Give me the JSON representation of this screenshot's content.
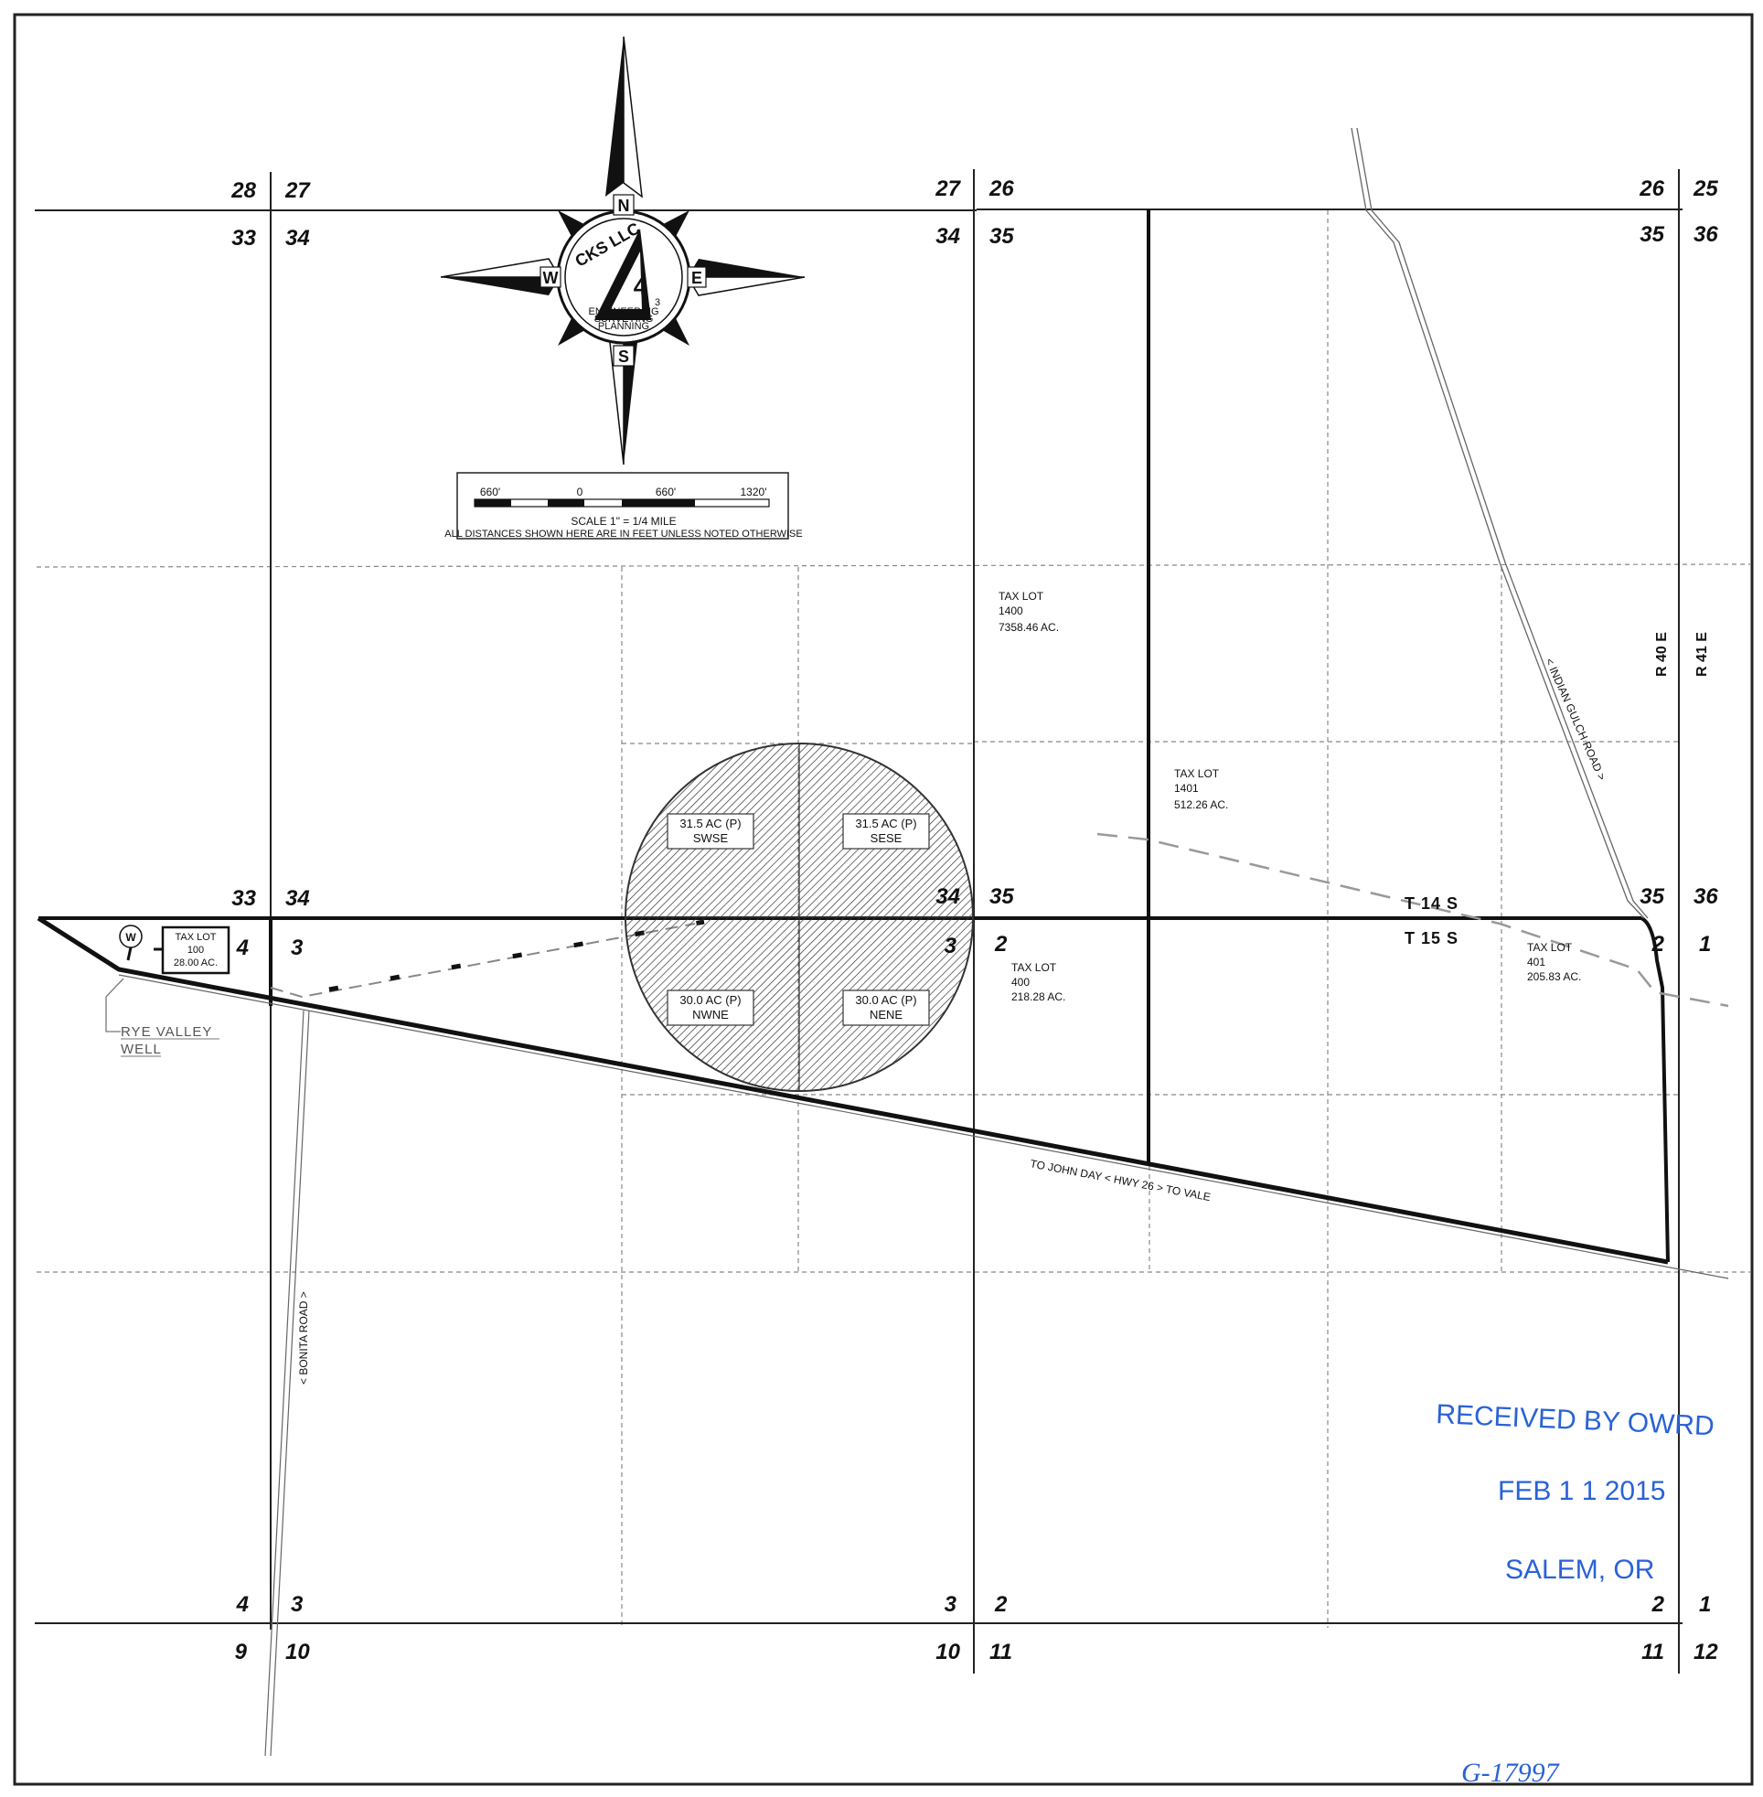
{
  "sections": {
    "row1": [
      "28",
      "27",
      "27",
      "26",
      "26",
      "25"
    ],
    "row2": [
      "33",
      "34",
      "34",
      "35",
      "35",
      "36"
    ],
    "row3": [
      "33",
      "34",
      "34",
      "35",
      "35",
      "36"
    ],
    "row4": [
      "4",
      "3",
      "3",
      "2",
      "2",
      "1"
    ],
    "row5": [
      "4",
      "3",
      "3",
      "2",
      "2",
      "1"
    ],
    "row6": [
      "9",
      "10",
      "10",
      "11",
      "11",
      "12"
    ]
  },
  "compass": {
    "n": "N",
    "s": "S",
    "e": "E",
    "w": "W",
    "ring_text": "CKS LLC",
    "logo": "4",
    "logo_sub": "3",
    "ring_lines": [
      "ENGINEERING",
      "SURVEYING",
      "PLANNING"
    ]
  },
  "scale_bar": {
    "labels": [
      "660'",
      "0",
      "660'",
      "1320'"
    ],
    "scale": "SCALE 1\" = 1/4 MILE",
    "note": "ALL DISTANCES SHOWN HERE ARE IN FEET UNLESS NOTED OTHERWISE"
  },
  "tax_lots": [
    {
      "name": "tax-lot-1400",
      "lines": [
        "TAX LOT",
        "1400",
        "7358.46 AC."
      ]
    },
    {
      "name": "tax-lot-1401",
      "lines": [
        "TAX LOT",
        "1401",
        "512.26 AC."
      ]
    },
    {
      "name": "tax-lot-400",
      "lines": [
        "TAX LOT",
        "400",
        "218.28 AC."
      ]
    },
    {
      "name": "tax-lot-401",
      "lines": [
        "TAX LOT",
        "401",
        "205.83 AC."
      ]
    }
  ],
  "tax_lot_100": [
    "TAX LOT",
    "100",
    "28.00 AC."
  ],
  "pivot_quadrants": [
    {
      "name": "swse",
      "lines": [
        "31.5 AC (P)",
        "SWSE"
      ]
    },
    {
      "name": "sese",
      "lines": [
        "31.5 AC (P)",
        "SESE"
      ]
    },
    {
      "name": "nwne",
      "lines": [
        "30.0 AC (P)",
        "NWNE"
      ]
    },
    {
      "name": "nene",
      "lines": [
        "30.0 AC (P)",
        "NENE"
      ]
    }
  ],
  "township": {
    "north": "T 14 S",
    "south": "T 15 S"
  },
  "ranges": {
    "west": "R 40 E",
    "east": "R 41 E"
  },
  "roads": {
    "indian_gulch": "< INDIAN GULCH ROAD >",
    "hwy": "TO JOHN DAY < HWY 26 > TO VALE",
    "bonita": "< BONITA ROAD >"
  },
  "well": {
    "symbol": "W",
    "lines": [
      "RYE VALLEY",
      "WELL"
    ]
  },
  "stamp": {
    "line1": "RECEIVED BY OWRD",
    "date": "FEB 1 1 2015",
    "city": "SALEM, OR"
  },
  "file_no": "G-17997",
  "colors": {
    "ink": "#111111",
    "stamp": "#2a62d6",
    "grid_dash": "#888888"
  }
}
